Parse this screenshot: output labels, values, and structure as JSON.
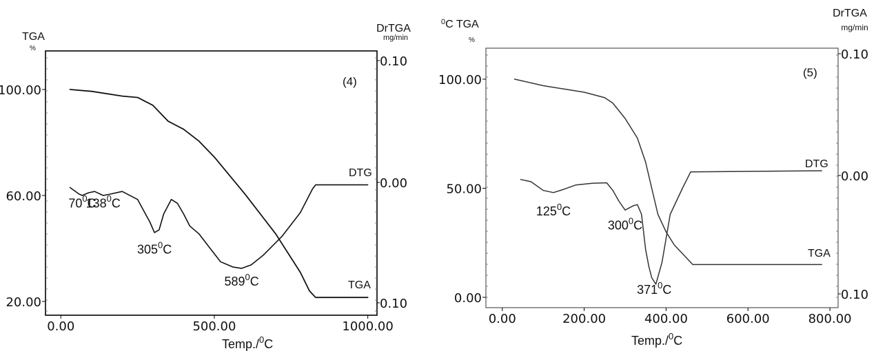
{
  "chart_data": [
    {
      "type": "line",
      "panel_label": "(4)",
      "left_axis": {
        "title": "TGA",
        "unit": "%",
        "ticks": [
          "100.00",
          "60.00",
          "20.00"
        ],
        "tick_values": [
          100,
          60,
          20
        ],
        "ylim": [
          20,
          100
        ]
      },
      "right_axis": {
        "title": "DrTGA",
        "unit": "mg/min",
        "ticks": [
          "0.10",
          "0.00",
          "0.10"
        ]
      },
      "x_axis": {
        "label": "Temp./",
        "label_unit": "C",
        "label_sup": "0",
        "ticks": [
          "0.00",
          "500.00",
          "1000.00"
        ],
        "tick_values": [
          0,
          500,
          1000
        ],
        "xlim": [
          -50,
          1030
        ]
      },
      "series": [
        {
          "name": "TGA",
          "points": [
            [
              30,
              100
            ],
            [
              100,
              99.3
            ],
            [
              200,
              97.5
            ],
            [
              250,
              97
            ],
            [
              300,
              94
            ],
            [
              350,
              88
            ],
            [
              400,
              85
            ],
            [
              450,
              80.5
            ],
            [
              500,
              74.5
            ],
            [
              600,
              60.5
            ],
            [
              700,
              45.5
            ],
            [
              780,
              31
            ],
            [
              810,
              24
            ],
            [
              830,
              21.5
            ],
            [
              1000,
              21.5
            ]
          ]
        },
        {
          "name": "DTG",
          "points": [
            [
              30,
              63
            ],
            [
              60,
              60.5
            ],
            [
              70,
              60
            ],
            [
              90,
              61
            ],
            [
              110,
              61.5
            ],
            [
              138,
              60
            ],
            [
              160,
              60.5
            ],
            [
              200,
              61.5
            ],
            [
              250,
              58.5
            ],
            [
              290,
              50
            ],
            [
              305,
              46
            ],
            [
              320,
              47
            ],
            [
              335,
              53
            ],
            [
              360,
              58.5
            ],
            [
              380,
              57
            ],
            [
              400,
              53
            ],
            [
              420,
              48.5
            ],
            [
              450,
              45.5
            ],
            [
              480,
              41
            ],
            [
              520,
              35
            ],
            [
              560,
              33
            ],
            [
              589,
              32.5
            ],
            [
              620,
              33.8
            ],
            [
              660,
              37.5
            ],
            [
              720,
              44.5
            ],
            [
              780,
              53.5
            ],
            [
              820,
              62.5
            ],
            [
              830,
              64
            ],
            [
              1000,
              64
            ]
          ]
        }
      ],
      "annotations": [
        {
          "value": "70",
          "unit": "C",
          "sup": "0",
          "x": 70,
          "y": 55.5
        },
        {
          "value": "138",
          "unit": "C",
          "sup": "0",
          "x": 138,
          "y": 55.5
        },
        {
          "value": "305",
          "unit": "C",
          "sup": "0",
          "x": 305,
          "y": 38
        },
        {
          "value": "589",
          "unit": "C",
          "sup": "0",
          "x": 589,
          "y": 26
        }
      ],
      "curve_labels": [
        "DTG",
        "TGA"
      ]
    },
    {
      "type": "line",
      "panel_label": "(5)",
      "left_axis": {
        "title": "TGA",
        "unit": "%",
        "prefix": "C",
        "prefix_sup": "0",
        "ticks": [
          "100.00",
          "50.00",
          "0.00"
        ],
        "tick_values": [
          100,
          50,
          0
        ],
        "ylim": [
          0,
          100
        ]
      },
      "right_axis": {
        "title": "DrTGA",
        "unit": "mg/min",
        "ticks": [
          "0.10",
          "0.00",
          "0.10"
        ]
      },
      "x_axis": {
        "label": "Temp./",
        "label_unit": "C",
        "label_sup": "0",
        "ticks": [
          "0.00",
          "200.00",
          "400.00",
          "600.00",
          "800.00"
        ],
        "tick_values": [
          0,
          200,
          400,
          600,
          800
        ],
        "xlim": [
          -40,
          820
        ]
      },
      "series": [
        {
          "name": "TGA",
          "points": [
            [
              30,
              100
            ],
            [
              100,
              97
            ],
            [
              150,
              95.5
            ],
            [
              200,
              94
            ],
            [
              250,
              91.5
            ],
            [
              270,
              89
            ],
            [
              300,
              82
            ],
            [
              330,
              73
            ],
            [
              350,
              62
            ],
            [
              365,
              50
            ],
            [
              380,
              38
            ],
            [
              400,
              30
            ],
            [
              420,
              24
            ],
            [
              450,
              18
            ],
            [
              465,
              15
            ],
            [
              780,
              15
            ]
          ]
        },
        {
          "name": "DTG",
          "points": [
            [
              45,
              54
            ],
            [
              70,
              53
            ],
            [
              100,
              49
            ],
            [
              125,
              48
            ],
            [
              150,
              49.5
            ],
            [
              180,
              51.5
            ],
            [
              220,
              52.3
            ],
            [
              255,
              52.5
            ],
            [
              270,
              49
            ],
            [
              285,
              44
            ],
            [
              300,
              40
            ],
            [
              320,
              42
            ],
            [
              330,
              42.5
            ],
            [
              340,
              38
            ],
            [
              350,
              22
            ],
            [
              358,
              14
            ],
            [
              365,
              9
            ],
            [
              375,
              6
            ],
            [
              390,
              16
            ],
            [
              410,
              38
            ],
            [
              440,
              50
            ],
            [
              460,
              57.5
            ],
            [
              780,
              58
            ]
          ]
        }
      ],
      "annotations": [
        {
          "value": "125",
          "unit": "C",
          "sup": "0",
          "x": 125,
          "y": 37.5
        },
        {
          "value": "300",
          "unit": "C",
          "sup": "0",
          "x": 300,
          "y": 31
        },
        {
          "value": "371",
          "unit": "C",
          "sup": "0",
          "x": 371,
          "y": 1.5
        }
      ],
      "curve_labels": [
        "DTG",
        "TGA"
      ]
    }
  ]
}
